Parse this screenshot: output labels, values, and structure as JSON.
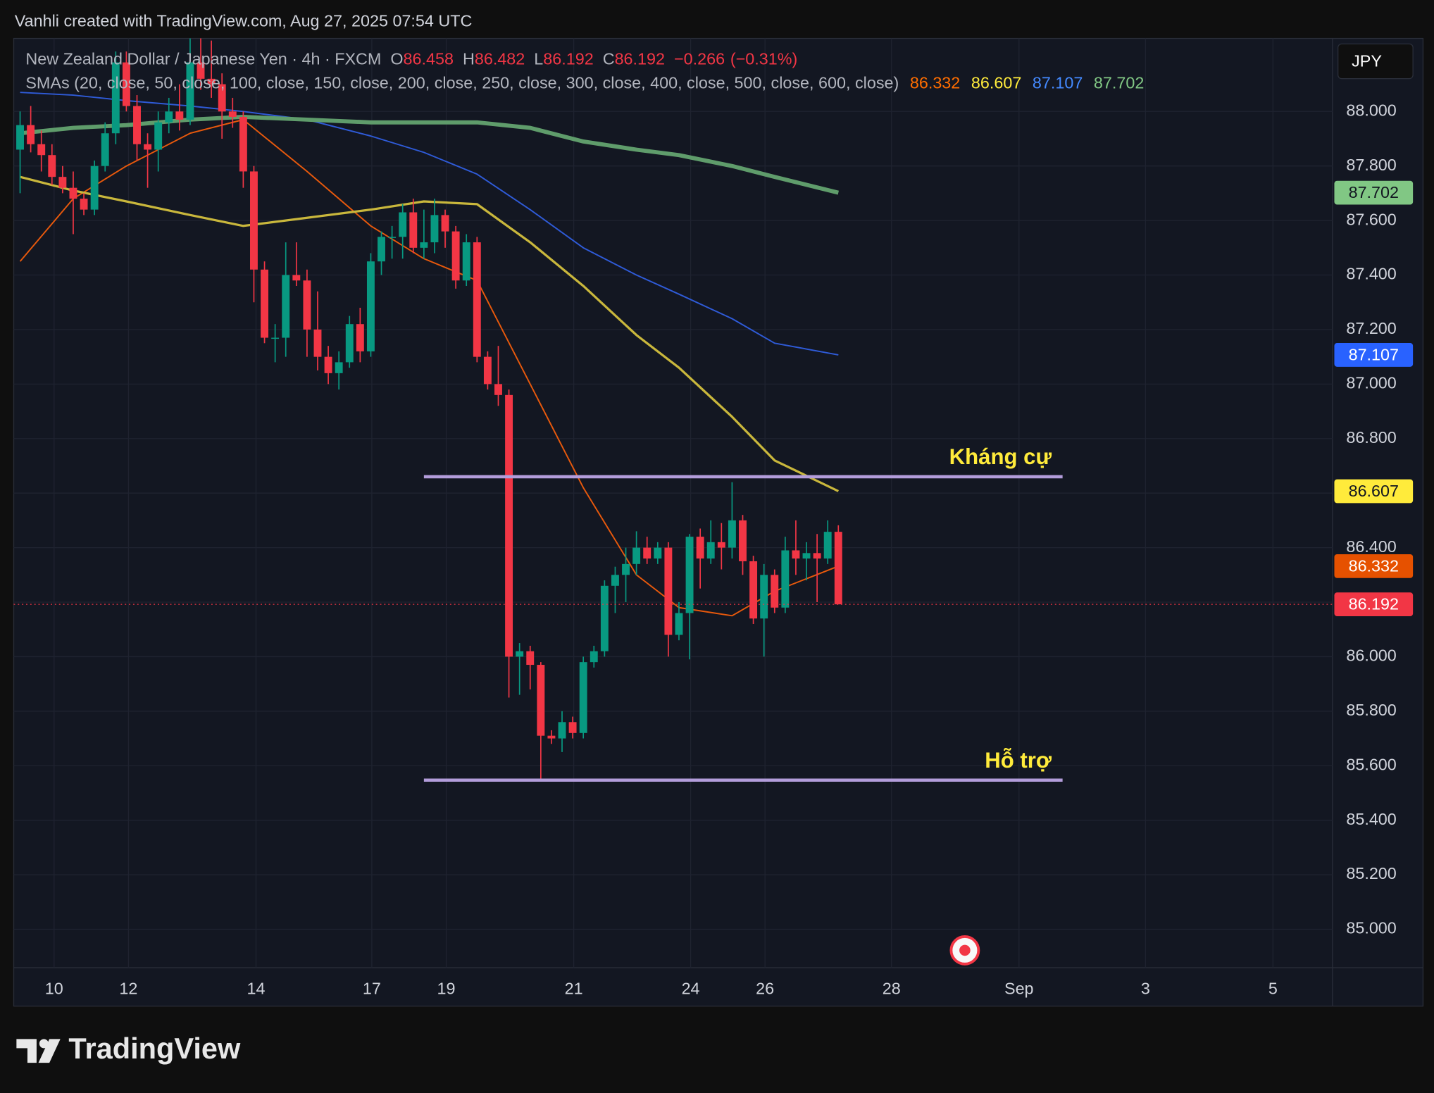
{
  "header": {
    "watermark": "Vanhli created with TradingView.com, Aug 27, 2025 07:54 UTC",
    "brand": "TradingView"
  },
  "chart_data": {
    "type": "candlestick",
    "title": "New Zealand Dollar / Japanese Yen · 4h · FXCM",
    "ohlc_letters": [
      "O",
      "H",
      "L",
      "C"
    ],
    "change": {
      "value": -0.266,
      "label": "−0.266"
    },
    "change_pct": {
      "value": -0.31,
      "label": "(−0.31%)"
    },
    "indicator": "SMAs (20, close, 50, close, 100, close, 150, close, 200, close, 250, close, 300, close, 400, close, 500, close, 600, close)",
    "currency": "JPY",
    "up_color": "#089981",
    "down_color": "#f23645",
    "x": [
      0,
      1,
      2,
      3,
      4,
      5,
      6,
      7,
      8,
      9,
      10,
      11,
      12,
      13,
      14,
      15,
      16,
      17,
      18,
      19,
      20,
      21,
      22,
      23,
      24,
      25,
      26,
      27,
      28,
      29,
      30,
      31,
      32,
      33,
      34,
      35,
      36,
      37,
      38,
      39,
      40,
      41,
      42,
      43,
      44,
      45,
      46,
      47,
      48,
      49,
      50,
      51,
      52,
      53,
      54,
      55,
      56,
      57,
      58,
      59,
      60,
      61,
      62,
      63,
      64,
      65,
      66,
      67,
      68,
      69,
      70,
      71,
      72,
      73,
      74,
      75,
      76,
      77
    ],
    "open": [
      87.86,
      87.95,
      87.88,
      87.84,
      87.76,
      87.72,
      87.68,
      87.64,
      87.8,
      87.92,
      88.18,
      88.02,
      87.88,
      87.86,
      87.96,
      88.0,
      87.97,
      88.18,
      88.12,
      88.1,
      88.0,
      87.98,
      87.78,
      87.42,
      87.17,
      87.17,
      87.4,
      87.38,
      87.2,
      87.1,
      87.04,
      87.08,
      87.22,
      87.12,
      87.45,
      87.54,
      87.54,
      87.63,
      87.5,
      87.52,
      87.62,
      87.56,
      87.38,
      87.52,
      87.1,
      87.0,
      86.96,
      86.0,
      86.02,
      85.97,
      85.71,
      85.7,
      85.76,
      85.72,
      85.98,
      86.02,
      86.26,
      86.3,
      86.34,
      86.4,
      86.36,
      86.4,
      86.08,
      86.16,
      86.44,
      86.36,
      86.42,
      86.4,
      86.5,
      86.35,
      86.14,
      86.3,
      86.18,
      86.39,
      86.36,
      86.38,
      86.36,
      86.458
    ],
    "high": [
      88.0,
      88.02,
      87.93,
      87.88,
      87.8,
      87.78,
      87.7,
      87.82,
      87.96,
      88.22,
      88.22,
      88.06,
      87.92,
      88.0,
      88.05,
      88.1,
      88.28,
      88.3,
      88.26,
      88.14,
      88.05,
      88.0,
      87.8,
      87.45,
      87.22,
      87.52,
      87.52,
      87.42,
      87.34,
      87.14,
      87.12,
      87.25,
      87.28,
      87.48,
      87.56,
      87.58,
      87.66,
      87.68,
      87.64,
      87.68,
      87.64,
      87.58,
      87.55,
      87.54,
      87.12,
      87.14,
      86.98,
      86.05,
      86.04,
      85.98,
      85.73,
      85.8,
      85.78,
      86.0,
      86.04,
      86.28,
      86.33,
      86.4,
      86.46,
      86.44,
      86.42,
      86.42,
      86.2,
      86.45,
      86.47,
      86.5,
      86.49,
      86.64,
      86.52,
      86.37,
      86.34,
      86.32,
      86.44,
      86.5,
      86.42,
      86.45,
      86.5,
      86.482
    ],
    "low": [
      87.7,
      87.85,
      87.78,
      87.73,
      87.7,
      87.55,
      87.62,
      87.62,
      87.78,
      87.88,
      88.0,
      87.82,
      87.72,
      87.78,
      87.92,
      87.93,
      87.95,
      88.08,
      88.05,
      87.9,
      87.94,
      87.72,
      87.3,
      87.15,
      87.08,
      87.1,
      87.36,
      87.1,
      87.05,
      87.0,
      86.98,
      87.06,
      87.08,
      87.1,
      87.4,
      87.46,
      87.46,
      87.48,
      87.46,
      87.48,
      87.5,
      87.35,
      87.36,
      87.08,
      86.98,
      86.92,
      85.85,
      85.86,
      85.88,
      85.55,
      85.68,
      85.65,
      85.7,
      85.7,
      85.96,
      86.0,
      86.16,
      86.2,
      86.3,
      86.34,
      86.34,
      86.0,
      86.06,
      85.99,
      86.25,
      86.34,
      86.32,
      86.36,
      86.3,
      86.12,
      86.0,
      86.16,
      86.16,
      86.3,
      86.28,
      86.2,
      86.34,
      86.192
    ],
    "close": [
      87.95,
      87.88,
      87.84,
      87.76,
      87.72,
      87.68,
      87.64,
      87.8,
      87.92,
      88.18,
      88.02,
      87.88,
      87.86,
      87.96,
      88.0,
      87.97,
      88.18,
      88.12,
      88.1,
      88.0,
      87.98,
      87.78,
      87.42,
      87.17,
      87.17,
      87.4,
      87.38,
      87.2,
      87.1,
      87.04,
      87.08,
      87.22,
      87.12,
      87.45,
      87.54,
      87.54,
      87.63,
      87.5,
      87.52,
      87.62,
      87.56,
      87.38,
      87.52,
      87.1,
      87.0,
      86.96,
      86.0,
      86.02,
      85.97,
      85.71,
      85.7,
      85.76,
      85.72,
      85.98,
      86.02,
      86.26,
      86.3,
      86.34,
      86.4,
      86.36,
      86.4,
      86.08,
      86.16,
      86.44,
      86.36,
      86.42,
      86.4,
      86.5,
      86.35,
      86.14,
      86.3,
      86.18,
      86.39,
      86.36,
      86.38,
      86.36,
      86.458,
      86.192
    ],
    "series": [
      {
        "color": "#e8590c",
        "width": 1.5,
        "x": [
          0,
          5,
          10,
          16,
          21,
          27,
          33,
          38,
          43,
          48,
          53,
          58,
          62,
          67,
          71,
          77
        ],
        "values": [
          87.45,
          87.68,
          87.8,
          87.92,
          87.97,
          87.78,
          87.58,
          87.46,
          87.38,
          87.0,
          86.62,
          86.3,
          86.18,
          86.15,
          86.24,
          86.332
        ]
      },
      {
        "color": "#c9b73c",
        "width": 2.5,
        "x": [
          0,
          5,
          10,
          16,
          21,
          27,
          33,
          38,
          43,
          48,
          53,
          58,
          62,
          67,
          71,
          77
        ],
        "values": [
          87.76,
          87.71,
          87.67,
          87.62,
          87.58,
          87.61,
          87.64,
          87.67,
          87.66,
          87.52,
          87.36,
          87.18,
          87.06,
          86.88,
          86.72,
          86.607
        ]
      },
      {
        "color": "#2f5bd8",
        "width": 1.5,
        "x": [
          0,
          5,
          10,
          16,
          21,
          27,
          33,
          38,
          43,
          48,
          53,
          58,
          62,
          67,
          71,
          77
        ],
        "values": [
          88.07,
          88.06,
          88.04,
          88.02,
          88.0,
          87.97,
          87.91,
          87.85,
          87.77,
          87.64,
          87.5,
          87.4,
          87.33,
          87.24,
          87.15,
          87.107
        ]
      },
      {
        "color": "#5f9c6b",
        "width": 4.5,
        "x": [
          0,
          5,
          10,
          16,
          21,
          27,
          33,
          38,
          43,
          48,
          53,
          58,
          62,
          67,
          71,
          77
        ],
        "values": [
          87.92,
          87.94,
          87.95,
          87.97,
          87.98,
          87.97,
          87.96,
          87.96,
          87.96,
          87.94,
          87.89,
          87.86,
          87.84,
          87.8,
          87.76,
          87.702
        ]
      }
    ],
    "legend_colors": [
      "#ff6d00",
      "#ffeb3b",
      "#448aff",
      "#81c784"
    ],
    "badge_colors": [
      "#e65100",
      "#ffeb3b",
      "#2962ff",
      "#81c784"
    ],
    "xlim": [
      -0.6,
      123.5
    ],
    "xticks": [
      {
        "value": 3.2,
        "label": "10"
      },
      {
        "value": 10.2,
        "label": "12"
      },
      {
        "value": 22.2,
        "label": "14"
      },
      {
        "value": 33.1,
        "label": "17"
      },
      {
        "value": 40.1,
        "label": "19"
      },
      {
        "value": 52.1,
        "label": "21"
      },
      {
        "value": 63.1,
        "label": "24"
      },
      {
        "value": 70.1,
        "label": "26"
      },
      {
        "value": 82.0,
        "label": "28"
      },
      {
        "value": 94.0,
        "label": "Sep"
      },
      {
        "value": 105.9,
        "label": "3"
      },
      {
        "value": 117.9,
        "label": "5"
      }
    ],
    "ylim": [
      84.859,
      88.268
    ],
    "yticks": [
      {
        "value": 85,
        "label": "85.000"
      },
      {
        "value": 85.2,
        "label": "85.200"
      },
      {
        "value": 85.4,
        "label": "85.400"
      },
      {
        "value": 85.6,
        "label": "85.600"
      },
      {
        "value": 85.8,
        "label": "85.800"
      },
      {
        "value": 86,
        "label": "86.000"
      },
      {
        "value": 86.2,
        "label": "86.200"
      },
      {
        "value": 86.4,
        "label": "86.400"
      },
      {
        "value": 86.6,
        "label": "86.600"
      },
      {
        "value": 86.8,
        "label": "86.800"
      },
      {
        "value": 87,
        "label": "87.000"
      },
      {
        "value": 87.2,
        "label": "87.200"
      },
      {
        "value": 87.4,
        "label": "87.400"
      },
      {
        "value": 87.6,
        "label": "87.600"
      },
      {
        "value": 87.8,
        "label": "87.800"
      },
      {
        "value": 88,
        "label": "88.000"
      }
    ],
    "grid": true,
    "annotations": [
      {
        "label": "Kháng cự",
        "value": 86.66,
        "x": [
          38,
          98.1
        ],
        "color": "#b39ddb",
        "label_color": "#ffeb3b"
      },
      {
        "label": "Hỗ trợ",
        "value": 85.547,
        "x": [
          38,
          98.1
        ],
        "color": "#b39ddb",
        "label_color": "#ffeb3b"
      }
    ]
  }
}
